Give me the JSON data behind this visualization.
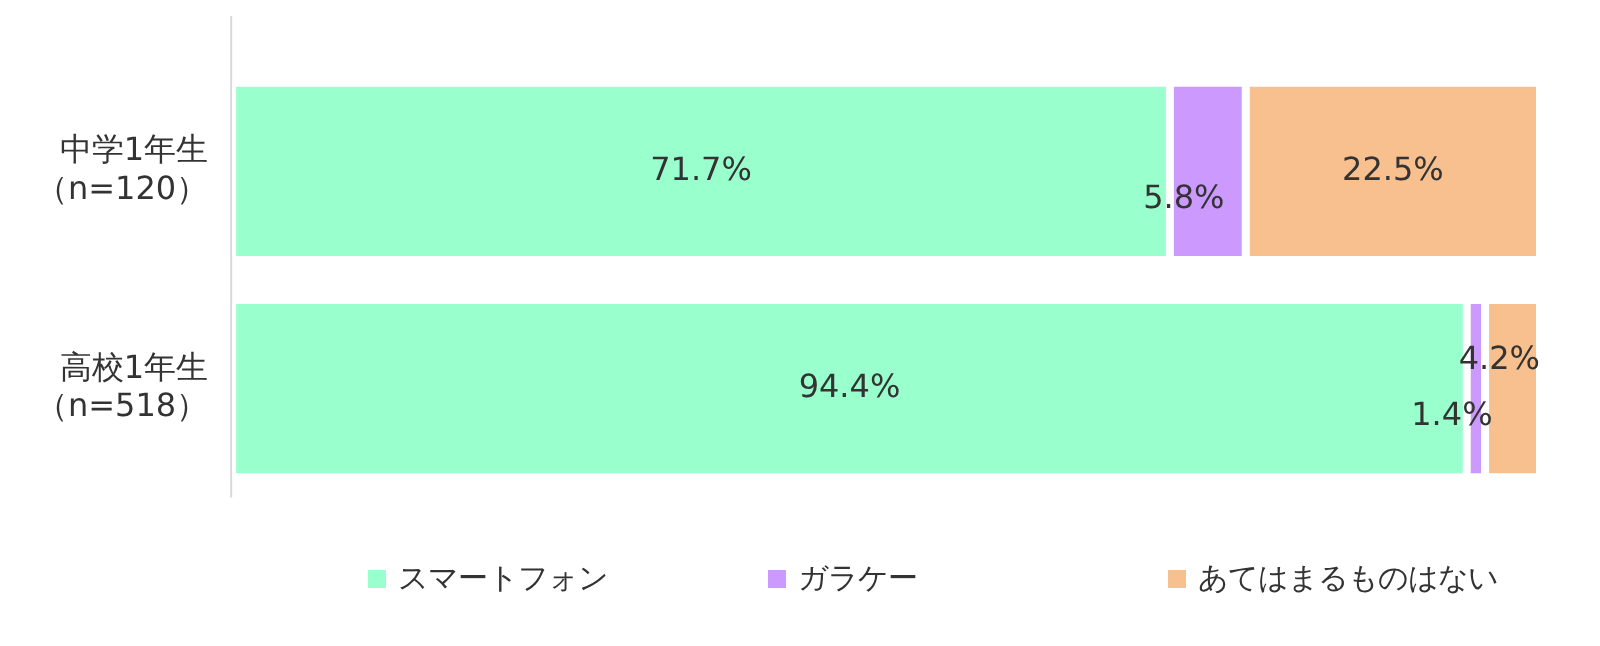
{
  "chart_data": {
    "type": "bar",
    "orientation": "horizontal",
    "stacked": true,
    "categories": [
      "中学1年生（n=120）",
      "高校1年生（n=518）"
    ],
    "series": [
      {
        "name": "スマートフォン",
        "color": "#99ffcc",
        "values": [
          71.7,
          94.4
        ],
        "value_labels": [
          "71.7%",
          "94.4%"
        ]
      },
      {
        "name": "ガラケー",
        "color": "#cc99ff",
        "values": [
          5.8,
          1.4
        ],
        "value_labels": [
          "5.8%",
          "1.4%"
        ]
      },
      {
        "name": "あてはまるものはない",
        "color": "#f9c08f",
        "values": [
          22.5,
          4.2
        ],
        "value_labels": [
          "22.5%",
          "4.2%"
        ]
      }
    ],
    "xlim": [
      0,
      100
    ],
    "tick_labels": "y",
    "grid": false,
    "legend": "bottom"
  }
}
